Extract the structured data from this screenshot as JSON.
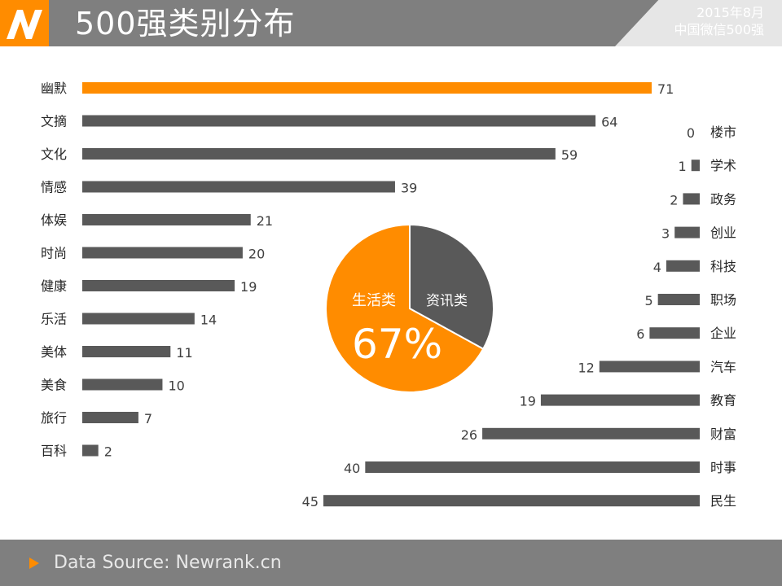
{
  "header": {
    "title": "500强类别分布",
    "date": "2015年8月",
    "subtitle": "中国微信500强"
  },
  "footer": {
    "source": "Data Source: Newrank.cn"
  },
  "colors": {
    "accent": "#ff8c00",
    "bar": "#595959",
    "header_bg": "#7f7f7f"
  },
  "chart_data": [
    {
      "type": "bar",
      "orientation": "horizontal",
      "group": "生活类",
      "categories": [
        "幽默",
        "文摘",
        "文化",
        "情感",
        "体娱",
        "时尚",
        "健康",
        "乐活",
        "美体",
        "美食",
        "旅行",
        "百科"
      ],
      "values": [
        71,
        64,
        59,
        39,
        21,
        20,
        19,
        14,
        11,
        10,
        7,
        2
      ],
      "highlight": "幽默",
      "xlim": [
        0,
        71
      ]
    },
    {
      "type": "bar",
      "orientation": "horizontal",
      "direction": "right-to-left",
      "group": "资讯类",
      "categories": [
        "楼市",
        "学术",
        "政务",
        "创业",
        "科技",
        "职场",
        "企业",
        "汽车",
        "教育",
        "财富",
        "时事",
        "民生"
      ],
      "values": [
        0,
        1,
        2,
        3,
        4,
        5,
        6,
        12,
        19,
        26,
        40,
        45
      ],
      "xlim": [
        0,
        45
      ]
    },
    {
      "type": "pie",
      "labels": [
        "生活类",
        "资讯类"
      ],
      "values": [
        67,
        33
      ],
      "center_label": "67%",
      "colors": [
        "#ff8c00",
        "#595959"
      ]
    }
  ]
}
